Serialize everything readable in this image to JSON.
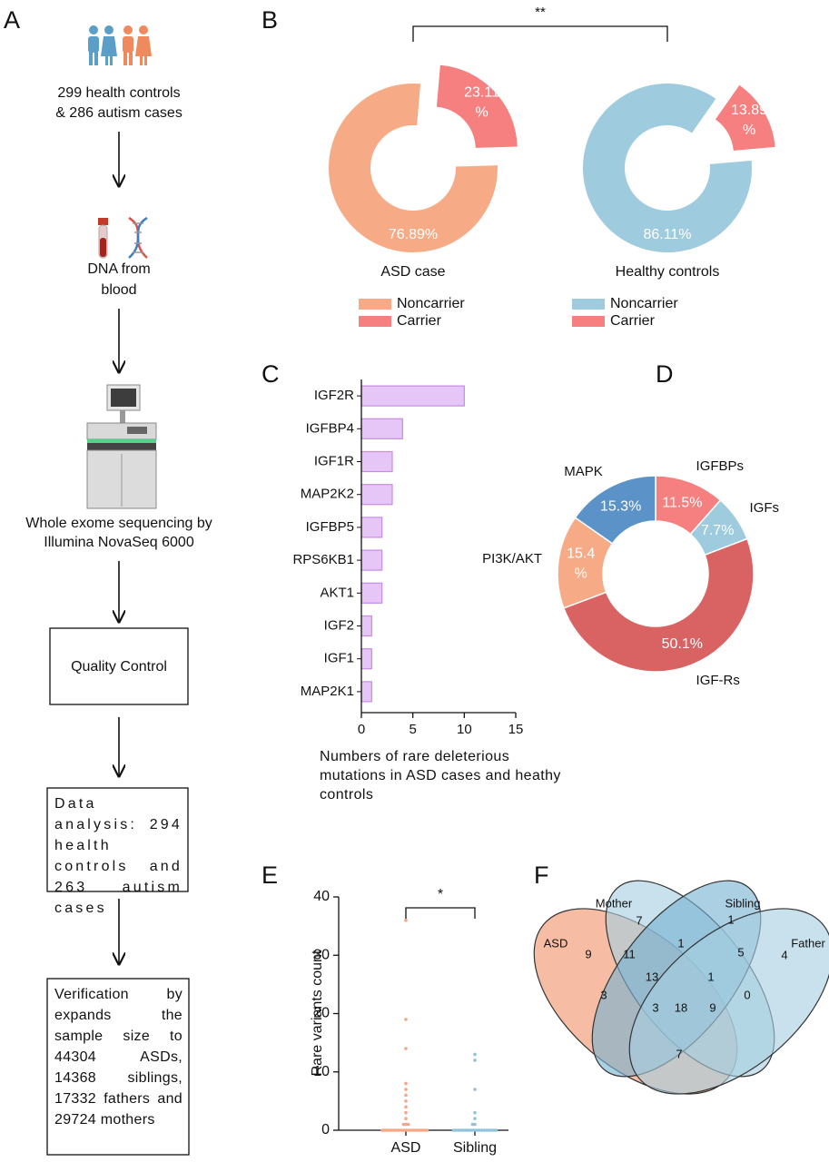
{
  "panel_labels": [
    "A",
    "B",
    "C",
    "D",
    "E",
    "F"
  ],
  "flowchart": {
    "steps": [
      {
        "lines": [
          "299 health controls",
          "& 286 autism cases"
        ]
      },
      {
        "lines": [
          "DNA from",
          "blood"
        ]
      },
      {
        "lines": [
          "Whole exome sequencing by",
          "Illumina NovaSeq 6000"
        ]
      }
    ],
    "boxes": [
      "Quality Control",
      "Data analysis: 294 health controls and 263 autism cases",
      "Verification by expands the sample size to 44304 ASDs, 14368 siblings, 17332 fathers and 29724 mothers"
    ]
  },
  "chart_data": [
    {
      "type": "donut",
      "annotation": "**",
      "legend": "bottom",
      "pies": [
        {
          "title": "ASD case",
          "categories": [
            "Noncarrier",
            "Carrier"
          ],
          "values": [
            76.89,
            23.11
          ],
          "value_labels": [
            "76.89%",
            "23.11 %"
          ],
          "colors": [
            "#f6ab86",
            "#f67f7f"
          ],
          "explode": [
            false,
            true
          ]
        },
        {
          "title": "Healthy controls",
          "categories": [
            "Noncarrier",
            "Carrier"
          ],
          "values": [
            86.11,
            13.89
          ],
          "value_labels": [
            "86.11%",
            "13.89 %"
          ],
          "colors": [
            "#9ecbdd",
            "#f67f7f"
          ],
          "explode": [
            false,
            true
          ]
        }
      ]
    },
    {
      "type": "bar",
      "orientation": "horizontal",
      "categories": [
        "IGF2R",
        "IGFBP4",
        "IGF1R",
        "MAP2K2",
        "IGFBP5",
        "RPS6KB1",
        "AKT1",
        "IGF2",
        "IGF1",
        "MAP2K1"
      ],
      "values": [
        10,
        4,
        3,
        3,
        2,
        2,
        2,
        1,
        1,
        1
      ],
      "color": "#e6c6f6",
      "edgecolor": "#c88ae6",
      "xlim": [
        0,
        15
      ],
      "xticks": [
        0,
        5,
        10,
        15
      ],
      "xlabel": "Numbers of rare deleterious mutations in ASD cases and heathy controls"
    },
    {
      "type": "donut",
      "legend": "none",
      "pies": [
        {
          "categories": [
            "IGFBPs",
            "IGFs",
            "IGF-Rs",
            "PI3K/AKT",
            "MAPK"
          ],
          "values": [
            11.5,
            7.7,
            50.1,
            15.4,
            15.3
          ],
          "value_labels": [
            "11.5%",
            "7.7%",
            "50.1%",
            "15.4 %",
            "15.3%"
          ],
          "colors": [
            "#f67f7f",
            "#9ecbdd",
            "#d96262",
            "#f6ab86",
            "#5b93c8"
          ],
          "explode": [
            false,
            false,
            false,
            false,
            false
          ]
        }
      ]
    },
    {
      "type": "strip",
      "ylabel": "Rare variants count",
      "annotation": "*",
      "categories": [
        "ASD",
        "Sibling"
      ],
      "colors": [
        "#f6a585",
        "#8fc3dc"
      ],
      "values": [
        [
          36,
          19,
          14,
          8,
          7,
          6,
          5,
          4,
          3,
          2,
          1,
          1,
          1,
          0,
          0,
          0,
          0,
          0,
          0,
          0,
          0,
          0,
          0,
          0,
          0,
          0,
          0,
          0,
          0,
          0,
          0,
          0,
          0
        ],
        [
          13,
          12,
          7,
          3,
          2,
          1,
          1,
          0,
          0,
          0,
          0,
          0,
          0,
          0,
          0,
          0,
          0,
          0,
          0,
          0,
          0,
          0,
          0,
          0,
          0,
          0
        ]
      ],
      "ylim": [
        0,
        40
      ],
      "yticks": [
        0,
        10,
        20,
        30,
        40
      ]
    },
    {
      "type": "venn",
      "sets": [
        {
          "name": "ASD",
          "color": "#f0956c"
        },
        {
          "name": "Mother",
          "color": "#a6cfe1"
        },
        {
          "name": "Sibling",
          "color": "#78b2d2"
        },
        {
          "name": "Father",
          "color": "#a6cfe1"
        }
      ],
      "regions": [
        {
          "sets": [
            0
          ],
          "value": 9
        },
        {
          "sets": [
            1
          ],
          "value": 7
        },
        {
          "sets": [
            2
          ],
          "value": 1
        },
        {
          "sets": [
            3
          ],
          "value": 4
        },
        {
          "sets": [
            0,
            1
          ],
          "value": 11
        },
        {
          "sets": [
            1,
            2
          ],
          "value": 1
        },
        {
          "sets": [
            2,
            3
          ],
          "value": 5
        },
        {
          "sets": [
            0,
            1,
            2
          ],
          "value": 13
        },
        {
          "sets": [
            1,
            2,
            3
          ],
          "value": 1
        },
        {
          "sets": [
            0,
            1,
            2,
            3
          ],
          "value": 18
        },
        {
          "sets": [
            0,
            2
          ],
          "value": 3
        },
        {
          "sets": [
            0,
            2,
            3
          ],
          "value": 3
        },
        {
          "sets": [
            0,
            1,
            3
          ],
          "value": 9
        },
        {
          "sets": [
            1,
            3
          ],
          "value": 0
        },
        {
          "sets": [
            0,
            3
          ],
          "value": 7
        }
      ]
    }
  ]
}
